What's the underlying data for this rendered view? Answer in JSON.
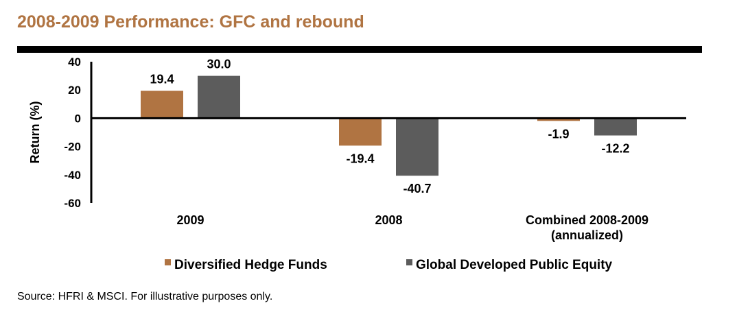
{
  "header": {
    "title": "2008-2009 Performance: GFC and rebound"
  },
  "footer": {
    "source": "Source: HFRI & MSCI. For illustrative purposes only."
  },
  "colors": {
    "title": "#b07442",
    "rule": "#000000"
  },
  "chart_data": {
    "type": "bar",
    "title": "",
    "xlabel": "",
    "ylabel": "Return (%)",
    "ylim": [
      -60,
      40
    ],
    "yticks": [
      40,
      20,
      0,
      -20,
      -40,
      -60
    ],
    "categories": [
      [
        "2009"
      ],
      [
        "2008"
      ],
      [
        "Combined 2008-2009",
        "(annualized)"
      ]
    ],
    "series": [
      {
        "name": "Diversified Hedge Funds",
        "color": "#b07442",
        "values": [
          19.4,
          -19.4,
          -1.9
        ]
      },
      {
        "name": "Global Developed Public Equity",
        "color": "#5c5c5c",
        "values": [
          30.0,
          -40.7,
          -12.2
        ]
      }
    ],
    "grid": false,
    "legend_position": "bottom"
  }
}
